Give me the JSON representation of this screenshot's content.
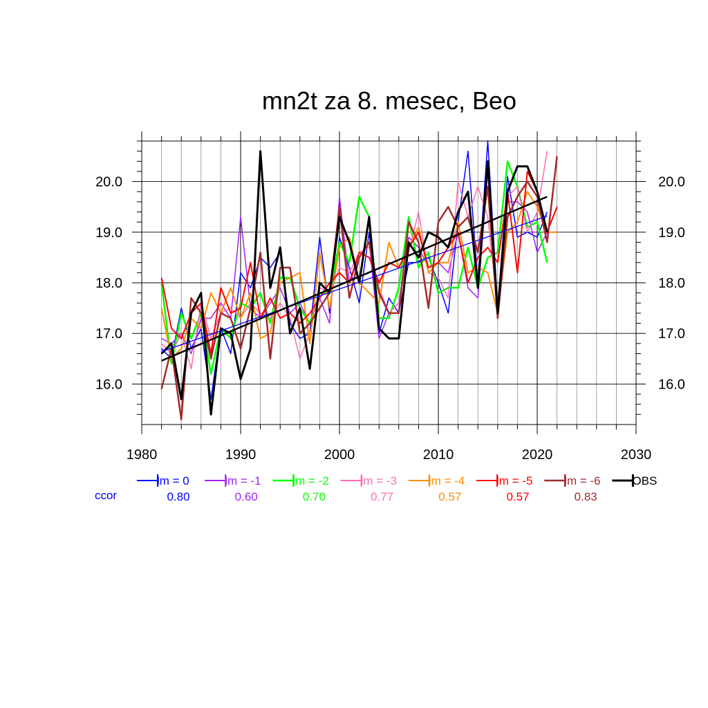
{
  "chart_data": {
    "type": "line",
    "title": "mn2t za 8. mesec, Beo",
    "xlim": [
      1980,
      2030
    ],
    "ylim": [
      15.2,
      20.8
    ],
    "x_ticks": [
      1980,
      1990,
      2000,
      2010,
      2020,
      2030
    ],
    "x_tick_labels": [
      "1980",
      "1990",
      "2000",
      "2010",
      "2020",
      "2030"
    ],
    "y_ticks": [
      16.0,
      17.0,
      18.0,
      19.0,
      20.0
    ],
    "y_tick_labels": [
      "16.0",
      "17.0",
      "18.0",
      "19.0",
      "20.0"
    ],
    "grid": true,
    "legend_placement": "bottom",
    "ccor_label": "ccor",
    "ccor_color": "#0000ff",
    "x": [
      1982,
      1983,
      1984,
      1985,
      1986,
      1987,
      1988,
      1989,
      1990,
      1991,
      1992,
      1993,
      1994,
      1995,
      1996,
      1997,
      1998,
      1999,
      2000,
      2001,
      2002,
      2003,
      2004,
      2005,
      2006,
      2007,
      2008,
      2009,
      2010,
      2011,
      2012,
      2013,
      2014,
      2015,
      2016,
      2017,
      2018,
      2019,
      2020,
      2021,
      2022
    ],
    "series": [
      {
        "name": "lm = 0",
        "ccor": "0.80",
        "color": "#0000ff",
        "width": 1.5,
        "values": [
          16.7,
          16.5,
          17.5,
          16.7,
          17.1,
          15.7,
          17.1,
          16.6,
          18.2,
          17.9,
          18.5,
          18.3,
          18.6,
          17.2,
          16.9,
          17.0,
          18.9,
          17.4,
          18.9,
          18.3,
          17.6,
          19.0,
          17.0,
          17.7,
          17.4,
          18.4,
          18.4,
          18.5,
          18.0,
          17.4,
          19.2,
          20.6,
          18.0,
          20.8,
          17.5,
          20.1,
          18.9,
          19.0,
          18.9,
          19.4,
          null
        ],
        "trend": [
          16.64,
          19.32
        ]
      },
      {
        "name": "lm = -1",
        "ccor": "0.60",
        "color": "#a020f0",
        "width": 1.5,
        "values": [
          16.9,
          16.8,
          17.0,
          16.6,
          17.3,
          17.3,
          17.6,
          17.3,
          19.3,
          17.5,
          17.3,
          17.6,
          17.9,
          17.4,
          17.6,
          17.2,
          17.7,
          17.2,
          19.7,
          18.0,
          18.5,
          18.8,
          16.9,
          17.4,
          17.6,
          18.9,
          18.7,
          18.3,
          18.4,
          18.2,
          19.0,
          17.9,
          17.7,
          20.2,
          17.5,
          19.6,
          19.6,
          19.4,
          18.6,
          19.0,
          null
        ],
        "trend": null
      },
      {
        "name": "lm = -2",
        "ccor": "0.70",
        "color": "#00ff00",
        "width": 2.5,
        "values": [
          18.0,
          16.4,
          17.4,
          16.9,
          17.4,
          16.2,
          17.1,
          16.9,
          17.6,
          17.5,
          17.8,
          17.2,
          18.1,
          18.1,
          17.5,
          17.2,
          17.8,
          17.8,
          18.8,
          18.4,
          19.7,
          19.3,
          17.3,
          17.3,
          17.9,
          19.3,
          18.3,
          18.6,
          17.8,
          17.9,
          17.9,
          18.7,
          17.9,
          18.5,
          18.6,
          20.4,
          19.9,
          19.1,
          19.2,
          18.4,
          null
        ],
        "trend": null
      },
      {
        "name": "lm = -3",
        "ccor": "0.77",
        "color": "#ff69b4",
        "width": 1.5,
        "values": [
          16.8,
          16.6,
          17.0,
          16.3,
          17.6,
          16.9,
          17.4,
          17.5,
          17.3,
          17.6,
          17.4,
          17.3,
          17.6,
          17.3,
          16.5,
          17.0,
          17.9,
          17.8,
          18.3,
          18.2,
          18.6,
          18.7,
          17.9,
          17.4,
          17.6,
          18.6,
          19.4,
          18.2,
          18.1,
          17.7,
          20.0,
          19.3,
          19.9,
          19.3,
          17.5,
          19.7,
          19.9,
          19.0,
          19.4,
          20.6,
          null
        ],
        "trend": null
      },
      {
        "name": "lm = -4",
        "ccor": "0.57",
        "color": "#ff8c00",
        "width": 2.0,
        "values": [
          17.5,
          16.5,
          16.7,
          17.3,
          17.1,
          17.8,
          17.4,
          17.9,
          17.3,
          17.8,
          16.9,
          17.0,
          18.0,
          18.1,
          18.2,
          16.8,
          18.6,
          17.5,
          18.7,
          18.9,
          18.0,
          17.8,
          17.6,
          18.8,
          18.3,
          18.7,
          19.1,
          18.2,
          18.4,
          18.4,
          19.2,
          18.2,
          18.3,
          18.2,
          17.4,
          19.0,
          19.2,
          19.8,
          19.5,
          19.0,
          19.0
        ],
        "trend": null
      },
      {
        "name": "lm = -5",
        "ccor": "0.57",
        "color": "#ff0000",
        "width": 2.0,
        "values": [
          18.1,
          17.1,
          16.9,
          17.4,
          17.6,
          16.6,
          17.9,
          17.4,
          17.5,
          18.4,
          17.3,
          17.7,
          17.3,
          17.4,
          17.2,
          17.4,
          17.7,
          18.0,
          18.2,
          18.0,
          18.6,
          18.5,
          18.0,
          18.4,
          18.3,
          18.7,
          19.0,
          18.3,
          18.4,
          18.7,
          19.0,
          18.0,
          18.5,
          18.7,
          18.4,
          19.8,
          18.2,
          20.2,
          19.8,
          19.0,
          19.5
        ],
        "trend": null
      },
      {
        "name": "lm = -6",
        "ccor": "0.83",
        "color": "#a52a2a",
        "width": 2.5,
        "values": [
          15.9,
          16.7,
          15.3,
          17.7,
          17.4,
          16.5,
          17.4,
          17.3,
          16.7,
          17.5,
          18.6,
          16.5,
          18.3,
          18.3,
          17.0,
          17.2,
          17.5,
          17.8,
          19.5,
          17.7,
          18.5,
          18.8,
          17.8,
          17.4,
          17.4,
          19.2,
          18.8,
          17.5,
          19.2,
          19.5,
          19.1,
          19.3,
          18.6,
          19.9,
          17.3,
          19.3,
          19.7,
          20.0,
          19.7,
          18.8,
          20.5
        ],
        "trend": null
      },
      {
        "name": "OBS",
        "ccor": "",
        "color": "#000000",
        "width": 3.0,
        "values": [
          16.6,
          16.8,
          15.7,
          17.4,
          17.8,
          15.4,
          17.1,
          17.0,
          16.1,
          16.7,
          20.6,
          17.9,
          18.7,
          17.0,
          17.5,
          16.3,
          18.0,
          17.8,
          19.3,
          18.8,
          18.0,
          19.3,
          17.1,
          16.9,
          16.9,
          18.8,
          18.5,
          19.0,
          18.9,
          18.7,
          19.4,
          19.8,
          17.9,
          20.4,
          17.4,
          19.8,
          20.3,
          20.3,
          19.8,
          19.0,
          null
        ],
        "trend": [
          16.46,
          19.7
        ]
      }
    ]
  }
}
